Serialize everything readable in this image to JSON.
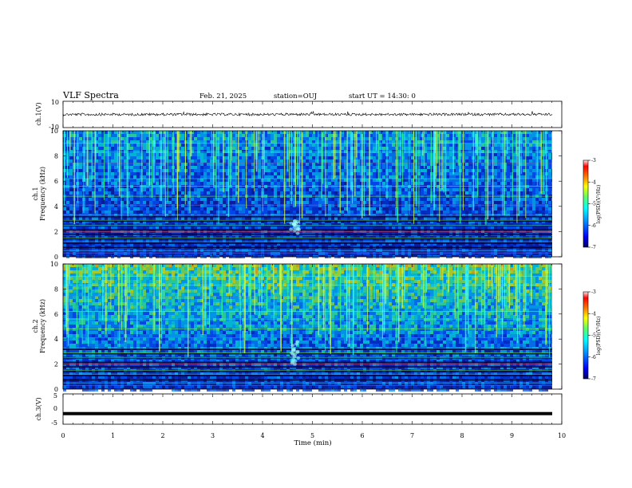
{
  "header": {
    "title": "VLF Spectra",
    "date": "Feb. 21, 2025",
    "station": "station=OUJ",
    "start": "start UT =  14:30: 0"
  },
  "colors": {
    "background": "#ffffff",
    "colormap": [
      "#000080",
      "#0000ff",
      "#0080ff",
      "#00ffff",
      "#80ff80",
      "#ffff00",
      "#ff8000",
      "#ff0000",
      "#ffffff"
    ]
  },
  "chart_data": [
    {
      "type": "line",
      "ylabel": "ch.1(V)",
      "ylim": [
        -10,
        10
      ],
      "yticks": [
        "10",
        "-10"
      ],
      "xlim": [
        0,
        10
      ],
      "note_level": 0
    },
    {
      "type": "heatmap",
      "ylabel_top": "ch.1",
      "ylabel": "Frequency (kHz)",
      "ylim": [
        0,
        10
      ],
      "yticks": [
        "0",
        "2",
        "4",
        "6",
        "8",
        "10"
      ],
      "xlim": [
        0,
        10
      ],
      "colorbar": {
        "label": "log(PSD)(V²/Hz)",
        "range": [
          -7,
          -3
        ],
        "ticks": [
          "-3",
          "-4",
          "-5",
          "-6",
          "-7"
        ]
      },
      "intensity": 0.35
    },
    {
      "type": "heatmap",
      "ylabel_top": "ch.2",
      "ylabel": "Frequency (kHz)",
      "ylim": [
        0,
        10
      ],
      "yticks": [
        "0",
        "2",
        "4",
        "6",
        "8",
        "10"
      ],
      "xlim": [
        0,
        10
      ],
      "colorbar": {
        "label": "log(PSD)(V²/Hz)",
        "range": [
          -7,
          -3
        ],
        "ticks": [
          "-3",
          "-4",
          "-5",
          "-6",
          "-7"
        ]
      },
      "intensity": 0.65
    },
    {
      "type": "line",
      "ylabel": "ch.3(V)",
      "ylim": [
        -5,
        5
      ],
      "yticks": [
        "5",
        "0",
        "-5"
      ],
      "xlim": [
        0,
        10
      ],
      "xticks": [
        "0",
        "1",
        "2",
        "3",
        "4",
        "5",
        "6",
        "7",
        "8",
        "9",
        "10"
      ],
      "xlabel": "Time (min)",
      "level": -1.5
    }
  ]
}
